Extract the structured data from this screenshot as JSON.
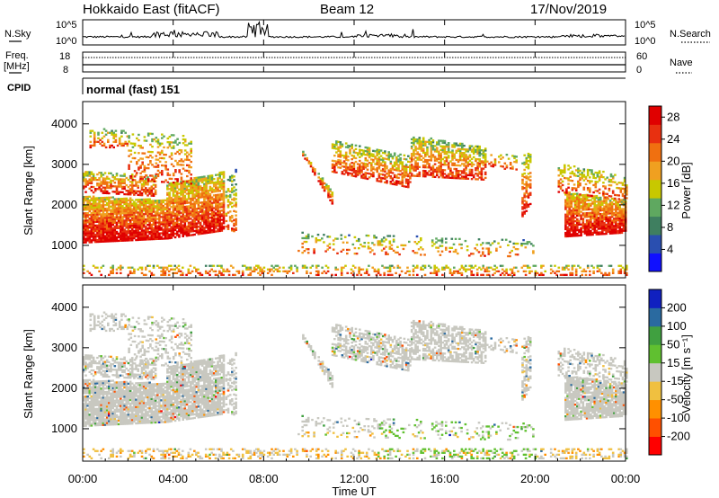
{
  "header": {
    "station": "Hokkaido East (fitACF)",
    "beam": "Beam 12",
    "date": "17/Nov/2019"
  },
  "noise_panel": {
    "left_label": "N.Sky",
    "right_label": "N.Search",
    "ticks": [
      "10^5",
      "10^0"
    ]
  },
  "freq_panel": {
    "left_label_1": "Freq.",
    "left_label_2": "[MHz]",
    "right_label": "Nave",
    "left_ticks": [
      "18",
      "8"
    ],
    "right_ticks": [
      "60",
      "0"
    ]
  },
  "cpid_panel": {
    "label": "CPID",
    "mode_text": "normal (fast) 151"
  },
  "x_axis": {
    "label": "Time UT",
    "ticks": [
      "00:00",
      "04:00",
      "08:00",
      "12:00",
      "16:00",
      "20:00",
      "00:00"
    ]
  },
  "colors": {
    "power_scale": [
      "#1010ff",
      "#2a4fb0",
      "#3f7f60",
      "#5fa860",
      "#c8c800",
      "#f0a020",
      "#f07010",
      "#e83010",
      "#e00000"
    ],
    "velocity_scale": [
      "#ff0000",
      "#ff5000",
      "#ff9000",
      "#f0c040",
      "#c8c8c0",
      "#60c030",
      "#40a040",
      "#2a6aa0",
      "#1020c0"
    ]
  },
  "chart_data": [
    {
      "type": "heatmap",
      "name": "power",
      "ylabel": "Slant Range [km]",
      "xlabel": "",
      "y_ticks": [
        1000,
        2000,
        3000,
        4000
      ],
      "ylim": [
        200,
        4550
      ],
      "xlim_hours": [
        0,
        24
      ],
      "colorbar": {
        "label": "Power [dB]",
        "ticks": [
          "4",
          "8",
          "12",
          "16",
          "20",
          "24",
          "28"
        ],
        "range": [
          0,
          30
        ]
      }
    },
    {
      "type": "heatmap",
      "name": "velocity",
      "ylabel": "Slant Range [km]",
      "xlabel": "Time UT",
      "y_ticks": [
        1000,
        2000,
        3000,
        4000
      ],
      "ylim": [
        200,
        4550
      ],
      "xlim_hours": [
        0,
        24
      ],
      "colorbar": {
        "label": "Velocity [m s⁻¹]",
        "ticks": [
          "200",
          "100",
          "50",
          "15",
          "-15",
          "-50",
          "-100",
          "-200"
        ],
        "range": [
          -250,
          250
        ]
      }
    }
  ]
}
